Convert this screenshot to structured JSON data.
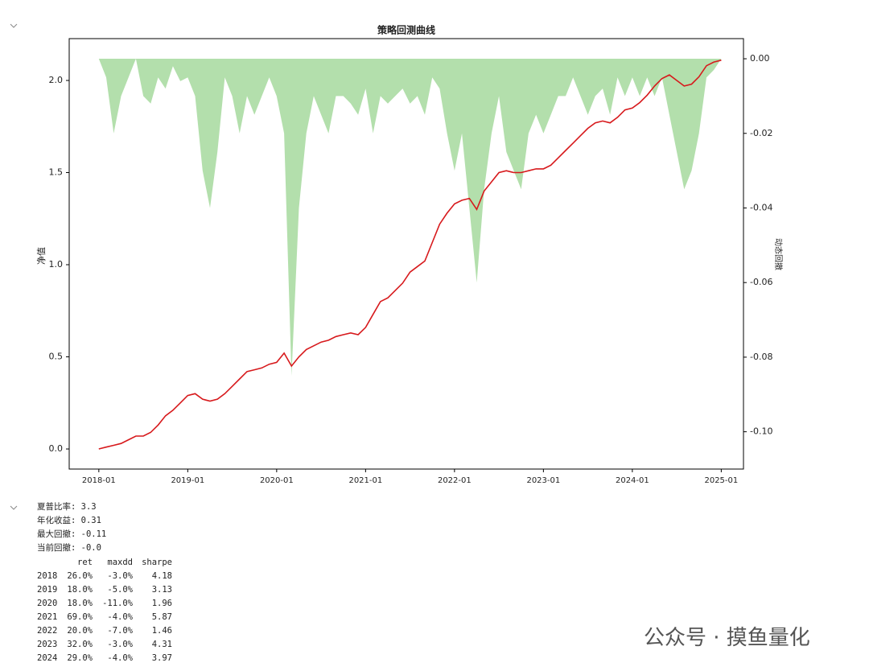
{
  "chart_data": {
    "type": "line",
    "title": "策略回测曲线",
    "ylabel": "净值",
    "y2label": "动态回撤",
    "xlim": [
      "2017-09",
      "2025-04"
    ],
    "xticks": [
      "2018-01",
      "2019-01",
      "2020-01",
      "2021-01",
      "2022-01",
      "2023-01",
      "2024-01",
      "2025-01"
    ],
    "ylim": [
      -0.109,
      2.227
    ],
    "yticks": [
      {
        "value": 0,
        "label": "0.0"
      },
      0.5,
      {
        "value": 1,
        "label": "1.0"
      },
      1.5,
      {
        "value": 2,
        "label": "2.0"
      }
    ],
    "y2lim": [
      -0.11,
      0.0054
    ],
    "y2ticks": [
      {
        "value": 0,
        "label": "0.00"
      },
      {
        "value": -0.02,
        "label": "-0.02"
      },
      {
        "value": -0.04,
        "label": "-0.04"
      },
      {
        "value": -0.06,
        "label": "-0.06"
      },
      {
        "value": -0.08,
        "label": "-0.08"
      },
      {
        "value": -0.1,
        "label": "-0.10"
      }
    ],
    "x": [
      "2018-01",
      "2018-02",
      "2018-03",
      "2018-04",
      "2018-05",
      "2018-06",
      "2018-07",
      "2018-08",
      "2018-09",
      "2018-10",
      "2018-11",
      "2018-12",
      "2019-01",
      "2019-02",
      "2019-03",
      "2019-04",
      "2019-05",
      "2019-06",
      "2019-07",
      "2019-08",
      "2019-09",
      "2019-10",
      "2019-11",
      "2019-12",
      "2020-01",
      "2020-02",
      "2020-03",
      "2020-04",
      "2020-05",
      "2020-06",
      "2020-07",
      "2020-08",
      "2020-09",
      "2020-10",
      "2020-11",
      "2020-12",
      "2021-01",
      "2021-02",
      "2021-03",
      "2021-04",
      "2021-05",
      "2021-06",
      "2021-07",
      "2021-08",
      "2021-09",
      "2021-10",
      "2021-11",
      "2021-12",
      "2022-01",
      "2022-02",
      "2022-03",
      "2022-04",
      "2022-05",
      "2022-06",
      "2022-07",
      "2022-08",
      "2022-09",
      "2022-10",
      "2022-11",
      "2022-12",
      "2023-01",
      "2023-02",
      "2023-03",
      "2023-04",
      "2023-05",
      "2023-06",
      "2023-07",
      "2023-08",
      "2023-09",
      "2023-10",
      "2023-11",
      "2023-12",
      "2024-01",
      "2024-02",
      "2024-03",
      "2024-04",
      "2024-05",
      "2024-06",
      "2024-07",
      "2024-08",
      "2024-09",
      "2024-10",
      "2024-11",
      "2024-12",
      "2025-01"
    ],
    "series": [
      {
        "type": "area",
        "axis": "y2",
        "color": "#a6d99e",
        "values": [
          0,
          -0.005,
          -0.02,
          -0.01,
          -0.005,
          0,
          -0.01,
          -0.012,
          -0.005,
          -0.008,
          -0.002,
          -0.006,
          -0.005,
          -0.01,
          -0.03,
          -0.04,
          -0.025,
          -0.005,
          -0.01,
          -0.02,
          -0.01,
          -0.015,
          -0.01,
          -0.005,
          -0.01,
          -0.02,
          -0.085,
          -0.04,
          -0.02,
          -0.01,
          -0.015,
          -0.02,
          -0.01,
          -0.01,
          -0.012,
          -0.015,
          -0.008,
          -0.02,
          -0.01,
          -0.012,
          -0.01,
          -0.008,
          -0.012,
          -0.01,
          -0.015,
          -0.005,
          -0.008,
          -0.02,
          -0.03,
          -0.02,
          -0.04,
          -0.06,
          -0.035,
          -0.02,
          -0.01,
          -0.025,
          -0.03,
          -0.035,
          -0.02,
          -0.015,
          -0.02,
          -0.015,
          -0.01,
          -0.01,
          -0.005,
          -0.01,
          -0.015,
          -0.01,
          -0.008,
          -0.015,
          -0.005,
          -0.01,
          -0.005,
          -0.01,
          -0.005,
          -0.01,
          -0.005,
          -0.015,
          -0.025,
          -0.035,
          -0.03,
          -0.02,
          -0.005,
          -0.003,
          0
        ]
      },
      {
        "type": "line",
        "color": "#d7191c",
        "values": [
          0.0,
          0.01,
          0.02,
          0.03,
          0.05,
          0.07,
          0.07,
          0.09,
          0.13,
          0.18,
          0.21,
          0.25,
          0.29,
          0.3,
          0.27,
          0.26,
          0.27,
          0.3,
          0.34,
          0.38,
          0.42,
          0.43,
          0.44,
          0.46,
          0.47,
          0.52,
          0.45,
          0.5,
          0.54,
          0.56,
          0.58,
          0.59,
          0.61,
          0.62,
          0.63,
          0.62,
          0.66,
          0.73,
          0.8,
          0.82,
          0.86,
          0.9,
          0.96,
          0.99,
          1.02,
          1.12,
          1.22,
          1.28,
          1.33,
          1.35,
          1.36,
          1.3,
          1.4,
          1.45,
          1.5,
          1.51,
          1.5,
          1.5,
          1.51,
          1.52,
          1.52,
          1.54,
          1.58,
          1.62,
          1.66,
          1.7,
          1.74,
          1.77,
          1.78,
          1.77,
          1.8,
          1.84,
          1.85,
          1.88,
          1.92,
          1.97,
          2.01,
          2.03,
          2.0,
          1.97,
          1.98,
          2.02,
          2.08,
          2.1,
          2.11
        ]
      }
    ]
  },
  "output": {
    "stats": [
      "夏普比率: 3.3",
      "年化收益: 0.31",
      "最大回撤: -0.11",
      "当前回撤: -0.0"
    ],
    "table": {
      "columns": [
        "ret",
        "maxdd",
        "sharpe"
      ],
      "rows": [
        [
          "2018",
          "26.0%",
          "-3.0%",
          "4.18"
        ],
        [
          "2019",
          "18.0%",
          "-5.0%",
          "3.13"
        ],
        [
          "2020",
          "18.0%",
          "-11.0%",
          "1.96"
        ],
        [
          "2021",
          "69.0%",
          "-4.0%",
          "5.87"
        ],
        [
          "2022",
          "20.0%",
          "-7.0%",
          "1.46"
        ],
        [
          "2023",
          "32.0%",
          "-3.0%",
          "4.31"
        ],
        [
          "2024",
          "29.0%",
          "-4.0%",
          "3.97"
        ]
      ]
    }
  },
  "watermark": "公众号 · 摸鱼量化"
}
